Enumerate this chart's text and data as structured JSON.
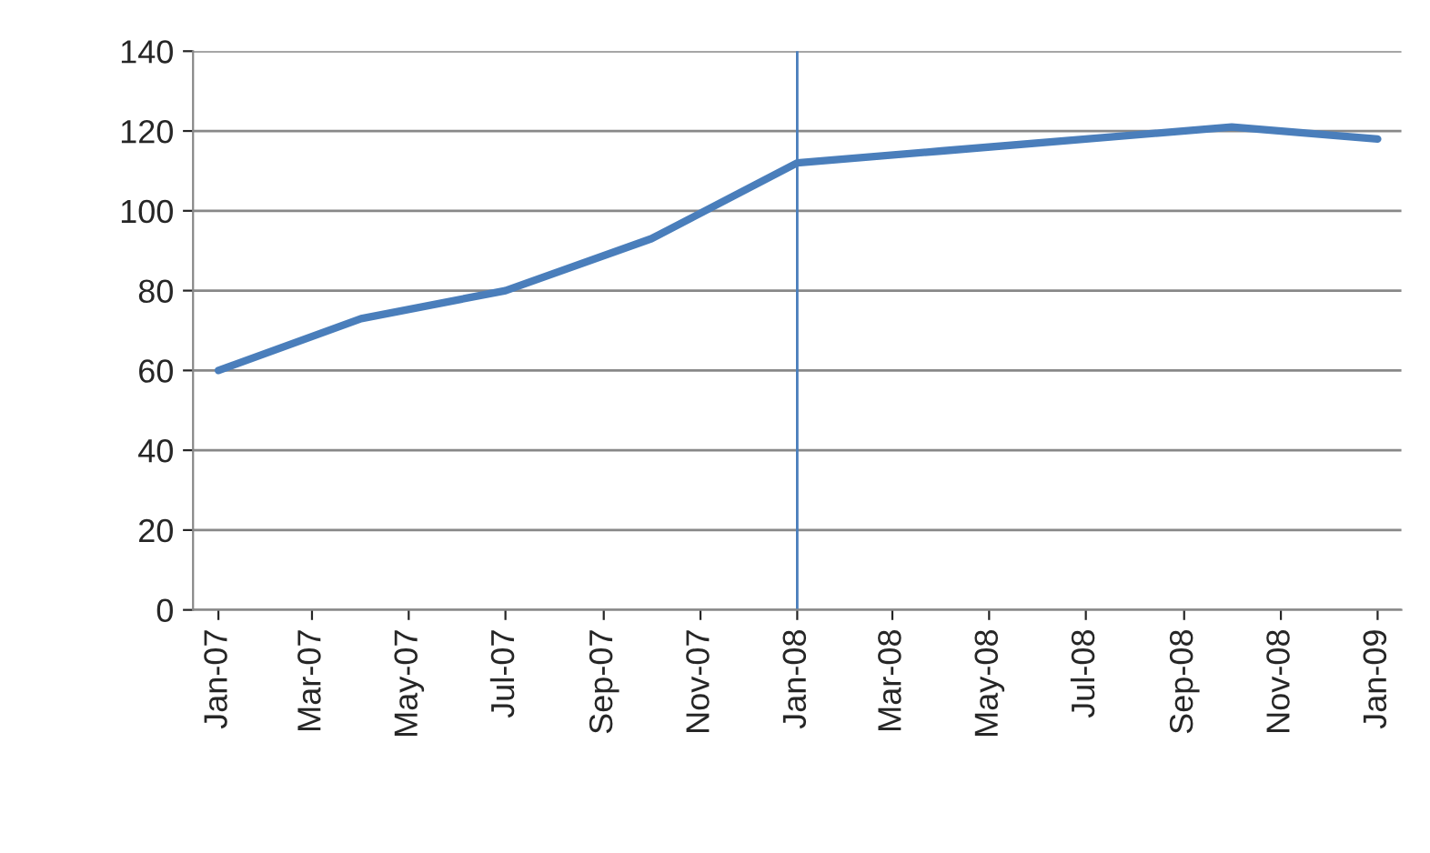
{
  "chart_data": {
    "type": "line",
    "x": [
      "2007-01",
      "2007-04",
      "2007-07",
      "2007-10",
      "2008-01",
      "2008-04",
      "2008-07",
      "2008-10",
      "2009-01"
    ],
    "series": [
      {
        "color": "#4a7ebb",
        "values": [
          60,
          73,
          80,
          93,
          112,
          115,
          118,
          121,
          118
        ]
      }
    ],
    "xlim": [
      "2006-12-16",
      "2009-01-16"
    ],
    "xticks": [
      {
        "value": "2007-01",
        "label": "Jan-07"
      },
      {
        "value": "2007-03",
        "label": "Mar-07"
      },
      {
        "value": "2007-05",
        "label": "May-07"
      },
      {
        "value": "2007-07",
        "label": "Jul-07"
      },
      {
        "value": "2007-09",
        "label": "Sep-07"
      },
      {
        "value": "2007-11",
        "label": "Nov-07"
      },
      {
        "value": "2008-01",
        "label": "Jan-08"
      },
      {
        "value": "2008-03",
        "label": "Mar-08"
      },
      {
        "value": "2008-05",
        "label": "May-08"
      },
      {
        "value": "2008-07",
        "label": "Jul-08"
      },
      {
        "value": "2008-09",
        "label": "Sep-08"
      },
      {
        "value": "2008-11",
        "label": "Nov-08"
      },
      {
        "value": "2009-01",
        "label": "Jan-09"
      }
    ],
    "ylim": [
      0,
      140
    ],
    "yticks": [
      0,
      20,
      40,
      60,
      80,
      100,
      120,
      140
    ],
    "grid": "y",
    "legend": false,
    "marker": "none",
    "line_style": "solid",
    "ref_lines": [
      {
        "axis": "x",
        "value": "2008-01",
        "label": null,
        "color": "#4a7ebb"
      }
    ]
  }
}
